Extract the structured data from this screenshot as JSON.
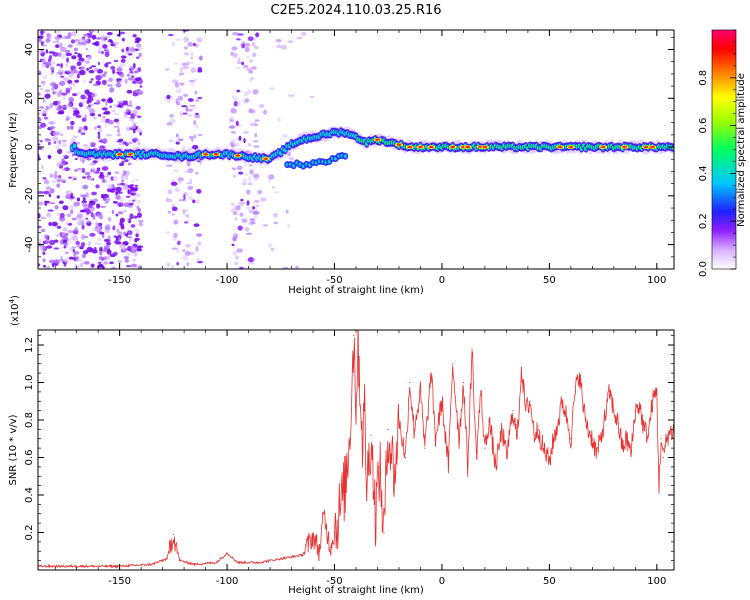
{
  "title": "C2E5.2024.110.03.25.R16",
  "colors": {
    "snr_line": "#e83030",
    "track_low": "#7a00ff",
    "track_mid": "#00e0d0",
    "track_high": "#ff2020"
  },
  "chart_data": [
    {
      "type": "heatmap",
      "xlabel": "Height of straight line (km)",
      "ylabel": "Frequency (Hz)",
      "xlim": [
        -188,
        108
      ],
      "ylim": [
        -50,
        48
      ],
      "xticks": [
        -150,
        -100,
        -50,
        0,
        50,
        100
      ],
      "xtick_labels": [
        "-150",
        "-100",
        "-50",
        "0",
        "50",
        "100"
      ],
      "yticks": [
        -40,
        -20,
        0,
        20,
        40
      ],
      "ytick_labels": [
        "-40",
        "-20",
        "0",
        "20",
        "40"
      ],
      "colorbar": {
        "label": "Normalized spectral amplitude",
        "range": [
          0,
          1
        ],
        "ticks": [
          0.0,
          0.2,
          0.4,
          0.6,
          0.8
        ],
        "tick_labels": [
          "0.0",
          "0.2",
          "0.4",
          "0.6",
          "0.8"
        ],
        "stops": [
          "#ffffff",
          "#b040ff",
          "#2020ff",
          "#00d0ff",
          "#00ff60",
          "#ffff00",
          "#ff8000",
          "#ff0000",
          "#ff0070"
        ]
      },
      "track": {
        "x": [
          -170,
          -160,
          -150,
          -140,
          -130,
          -120,
          -110,
          -100,
          -90,
          -80,
          -75,
          -70,
          -65,
          -60,
          -55,
          -50,
          -45,
          -40,
          -35,
          -30,
          -25,
          -20,
          -15,
          -10,
          -5,
          0,
          5,
          10,
          20,
          30,
          40,
          50,
          60,
          70,
          80,
          90,
          100,
          108
        ],
        "y": [
          -2,
          -3,
          -3,
          -3,
          -3,
          -4,
          -3,
          -3,
          -4,
          -5,
          -2,
          1,
          3,
          4,
          5,
          6,
          6,
          4,
          2,
          3,
          2,
          1,
          0,
          0,
          0,
          0,
          0,
          0,
          0,
          0,
          0,
          0,
          0,
          0,
          0,
          0,
          0,
          0
        ]
      }
    },
    {
      "type": "line",
      "xlabel": "Height of straight line (km)",
      "ylabel": "SNR (10 * v/v)",
      "scale_note": "(x10",
      "scale_exp": "4",
      "scale_close": ")",
      "xlim": [
        -188,
        108
      ],
      "ylim": [
        0,
        1.28
      ],
      "xticks": [
        -150,
        -100,
        -50,
        0,
        50,
        100
      ],
      "xtick_labels": [
        "-150",
        "-100",
        "-50",
        "0",
        "50",
        "100"
      ],
      "yticks": [
        0.2,
        0.4,
        0.6,
        0.8,
        1.0,
        1.2
      ],
      "ytick_labels": [
        "0.2",
        "0.4",
        "0.6",
        "0.8",
        "1.0",
        "1.2"
      ],
      "series": [
        {
          "x": [
            -188,
            -170,
            -150,
            -135,
            -128,
            -125,
            -122,
            -115,
            -105,
            -100,
            -95,
            -85,
            -75,
            -65,
            -60,
            -57,
            -55,
            -52,
            -50,
            -47,
            -45,
            -43,
            -41,
            -40,
            -39,
            -37,
            -36,
            -35,
            -33,
            -31,
            -29,
            -27,
            -25,
            -22,
            -20,
            -17,
            -15,
            -13,
            -10,
            -8,
            -5,
            -3,
            0,
            3,
            5,
            8,
            10,
            12,
            14,
            16,
            18,
            20,
            22,
            25,
            28,
            30,
            33,
            35,
            37,
            39,
            41,
            43,
            45,
            47,
            50,
            52,
            54,
            56,
            58,
            60,
            62,
            64,
            66,
            68,
            70,
            72,
            74,
            76,
            78,
            80,
            82,
            84,
            86,
            88,
            90,
            92,
            94,
            96,
            98,
            100,
            101,
            102,
            103,
            105,
            108
          ],
          "values": [
            0.02,
            0.02,
            0.02,
            0.03,
            0.06,
            0.19,
            0.05,
            0.03,
            0.04,
            0.09,
            0.04,
            0.04,
            0.06,
            0.08,
            0.18,
            0.1,
            0.3,
            0.12,
            0.2,
            0.35,
            0.45,
            0.7,
            1.25,
            0.9,
            1.2,
            0.7,
            0.85,
            0.45,
            0.72,
            0.3,
            0.55,
            0.2,
            0.75,
            0.5,
            0.8,
            0.6,
            1.0,
            0.75,
            0.95,
            0.65,
            1.05,
            0.7,
            0.9,
            0.55,
            1.1,
            0.7,
            1.0,
            0.55,
            1.18,
            0.6,
            0.95,
            0.65,
            0.8,
            0.55,
            0.75,
            0.6,
            0.85,
            0.7,
            1.08,
            0.85,
            0.9,
            0.72,
            0.75,
            0.65,
            0.58,
            0.7,
            0.78,
            0.9,
            0.82,
            0.7,
            0.95,
            1.05,
            0.85,
            0.75,
            0.7,
            0.62,
            0.7,
            0.82,
            0.95,
            0.85,
            0.78,
            0.65,
            0.7,
            0.62,
            0.85,
            0.88,
            0.75,
            0.72,
            0.9,
            0.95,
            0.45,
            0.7,
            0.6,
            0.72,
            0.75
          ]
        }
      ]
    }
  ]
}
